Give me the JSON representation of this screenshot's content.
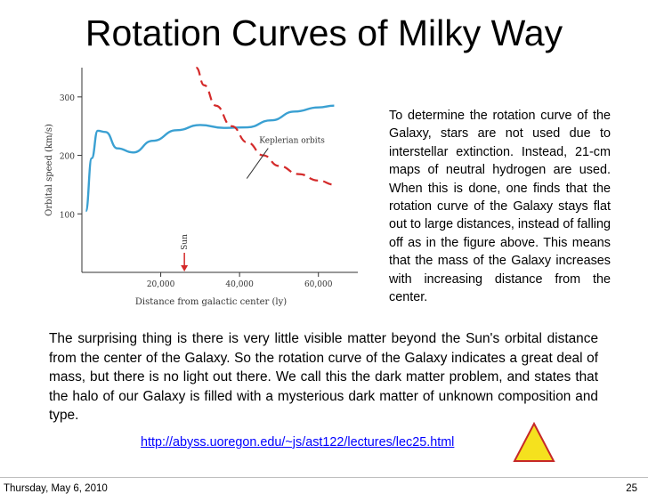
{
  "slide": {
    "title": "Rotation Curves of Milky Way",
    "side_text": "To determine the rotation curve of the Galaxy, stars are not used due to interstellar extinction. Instead, 21-cm maps of neutral hydrogen are used. When this is done, one finds that the rotation curve of the Galaxy stays flat out to large distances, instead of falling off as in the figure above. This means that the mass of the Galaxy increases with increasing distance from the center.",
    "body_text": "The surprising thing is there is very little visible matter beyond the Sun's orbital distance from the center of the Galaxy. So the rotation curve of the Galaxy indicates a great deal of mass, but there is no light out there. We call this the dark matter problem, and states that the halo of our Galaxy is filled with a mysterious dark matter of unknown composition and type.",
    "link": "http://abyss.uoregon.edu/~js/ast122/lectures/lec25.html",
    "footer_date": "Thursday, May 6, 2010",
    "page_number": "25"
  },
  "colors": {
    "observed": "#3aa0d2",
    "keplerian": "#d42a2a",
    "triangle_fill": "#f5e11e",
    "triangle_stroke": "#c62828",
    "link": "#0000ff"
  },
  "chart_data": {
    "type": "line",
    "title": "",
    "xlabel": "Distance from galactic center (ly)",
    "ylabel": "Orbital speed (km/s)",
    "xlim": [
      0,
      70000
    ],
    "ylim": [
      0,
      350
    ],
    "x_ticks": [
      {
        "value": 20000,
        "label": "20,000"
      },
      {
        "value": 40000,
        "label": "40,000"
      },
      {
        "value": 60000,
        "label": "60,000"
      }
    ],
    "y_ticks": [
      {
        "value": 100,
        "label": "100"
      },
      {
        "value": 200,
        "label": "200"
      },
      {
        "value": 300,
        "label": "300"
      }
    ],
    "annotations": [
      {
        "text": "Keplerian orbits",
        "x": 45000,
        "y": 200
      },
      {
        "text": "Sun",
        "x": 26000,
        "y": 0
      }
    ],
    "series": [
      {
        "name": "Observed rotation curve",
        "style": "solid",
        "x": [
          1000,
          2500,
          4000,
          6000,
          9000,
          13000,
          18000,
          24000,
          30000,
          36000,
          42000,
          48000,
          54000,
          60000,
          64000
        ],
        "y": [
          105,
          195,
          242,
          240,
          212,
          205,
          225,
          243,
          252,
          247,
          248,
          260,
          275,
          282,
          285
        ]
      },
      {
        "name": "Keplerian orbits",
        "style": "dashed",
        "x": [
          29000,
          31000,
          34000,
          38000,
          42000,
          46000,
          50000,
          55000,
          60000,
          64000
        ],
        "y": [
          350,
          320,
          285,
          250,
          222,
          200,
          182,
          168,
          157,
          150
        ]
      }
    ],
    "sun_marker_x": 26000
  }
}
